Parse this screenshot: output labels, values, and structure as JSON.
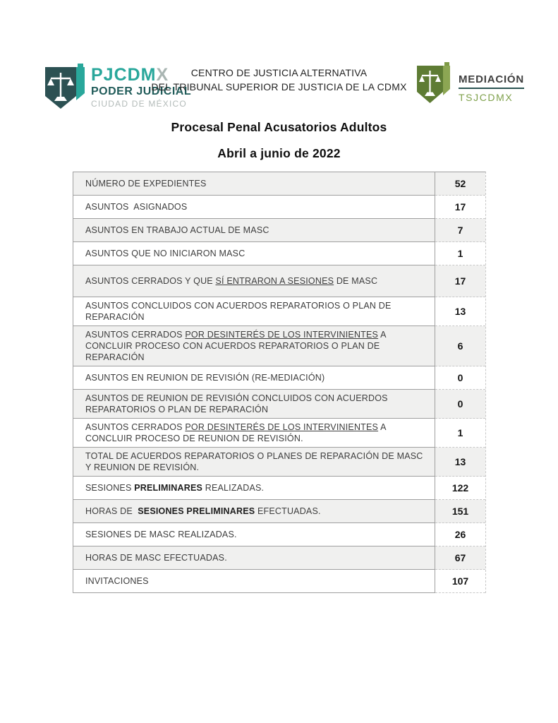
{
  "header": {
    "org_line1": "CENTRO DE JUSTICIA ALTERNATIVA",
    "org_line2": "DEL TRIBUNAL SUPERIOR DE JUSTICIA DE LA CDMX",
    "left_logo": {
      "acronym_main": "PJCDM",
      "acronym_x": "X",
      "line1": "PODER JUDICIAL",
      "line2": "CIUDAD DE MÉXICO"
    },
    "right_logo": {
      "title": "MEDIACIÓN",
      "subtitle": "TSJCDMX"
    }
  },
  "title": "Procesal Penal Acusatorios Adultos",
  "subtitle": "Abril a junio de 2022",
  "table": {
    "rows": [
      {
        "label": [
          {
            "t": "NÚMERO DE EXPEDIENTES"
          }
        ],
        "value": "52"
      },
      {
        "label": [
          {
            "t": "ASUNTOS  ASIGNADOS"
          }
        ],
        "value": "17"
      },
      {
        "label": [
          {
            "t": "ASUNTOS EN TRABAJO ACTUAL DE MASC"
          }
        ],
        "value": "7"
      },
      {
        "label": [
          {
            "t": "ASUNTOS QUE NO INICIARON MASC"
          }
        ],
        "value": "1"
      },
      {
        "label": [
          {
            "t": "ASUNTOS CERRADOS Y QUE "
          },
          {
            "t": "SÍ ENTRARON A SESIONES",
            "u": true
          },
          {
            "t": " DE MASC"
          }
        ],
        "value": "17"
      },
      {
        "label": [
          {
            "t": "ASUNTOS CONCLUIDOS CON ACUERDOS REPARATORIOS O PLAN DE REPARACIÓN"
          }
        ],
        "value": "13"
      },
      {
        "label": [
          {
            "t": "ASUNTOS CERRADOS "
          },
          {
            "t": "POR DESINTERÉS DE LOS INTERVINIENTES",
            "u": true
          },
          {
            "t": " A CONCLUIR PROCESO CON ACUERDOS REPARATORIOS O PLAN DE REPARACIÓN"
          }
        ],
        "value": "6"
      },
      {
        "label": [
          {
            "t": "ASUNTOS EN REUNION DE REVISIÓN (RE-MEDIACIÓN)"
          }
        ],
        "value": "0"
      },
      {
        "label": [
          {
            "t": "ASUNTOS DE REUNION DE REVISIÓN CONCLUIDOS CON ACUERDOS REPARATORIOS O PLAN DE REPARACIÓN"
          }
        ],
        "value": "0"
      },
      {
        "label": [
          {
            "t": "ASUNTOS CERRADOS "
          },
          {
            "t": "POR DESINTERÉS DE LOS INTERVINIENTES",
            "u": true
          },
          {
            "t": " A CONCLUIR PROCESO DE REUNION DE REVISIÓN."
          }
        ],
        "value": "1"
      },
      {
        "label": [
          {
            "t": "TOTAL DE ACUERDOS REPARATORIOS O PLANES DE REPARACIÓN DE MASC Y REUNION DE REVISIÓN."
          }
        ],
        "value": "13"
      },
      {
        "label": [
          {
            "t": "SESIONES "
          },
          {
            "t": "PRELIMINARES",
            "b": true
          },
          {
            "t": " REALIZADAS."
          }
        ],
        "value": "122"
      },
      {
        "label": [
          {
            "t": "HORAS DE  "
          },
          {
            "t": "SESIONES PRELIMINARES",
            "b": true
          },
          {
            "t": " EFECTUADAS."
          }
        ],
        "value": "151"
      },
      {
        "label": [
          {
            "t": "SESIONES DE MASC REALIZADAS."
          }
        ],
        "value": "26"
      },
      {
        "label": [
          {
            "t": "HORAS DE MASC EFECTUADAS."
          }
        ],
        "value": "67"
      },
      {
        "label": [
          {
            "t": "INVITACIONES"
          }
        ],
        "value": "107"
      }
    ]
  },
  "colors": {
    "teal": "#29A79B",
    "dark_teal": "#215C5A",
    "logo_gray": "#B3BBB9",
    "olive_green": "#5E7C34",
    "light_green": "#8CA653",
    "mediacion_green": "#7FA14C",
    "border_gray": "#9F9F9F",
    "row_shade": "#F0F0EF"
  }
}
